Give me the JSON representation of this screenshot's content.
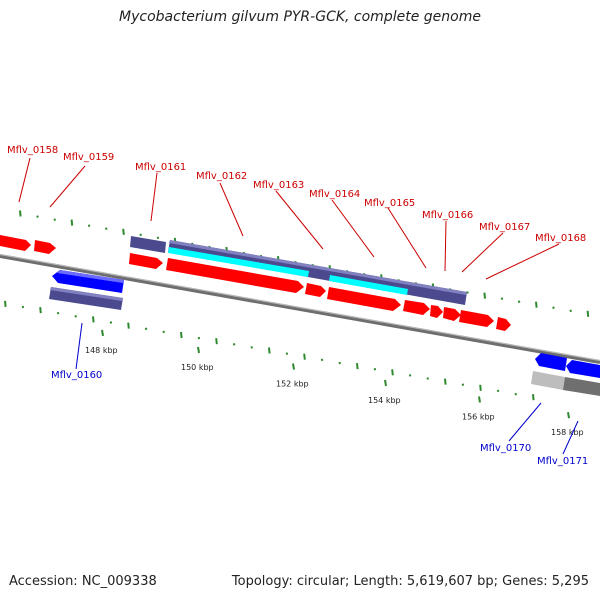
{
  "title": "Mycobacterium gilvum PYR-GCK, complete genome",
  "footer": {
    "accession": "Accession: NC_009338",
    "summary": "Topology: circular; Length: 5,619,607 bp; Genes: 5,295"
  },
  "colors": {
    "forward_gene": "#ff0000",
    "reverse_gene": "#0000ff",
    "cds_bar": "#4b4a8e",
    "highlight": "#00ffff",
    "backbone": "#7a7a7a",
    "gc_tick": "#2f8a2f",
    "forward_label": "#cc0000",
    "reverse_label": "#0000cc"
  },
  "ruler_labels": [
    "148 kbp",
    "150 kbp",
    "152 kbp",
    "154 kbp",
    "156 kbp",
    "158 kbp"
  ],
  "forward_genes": [
    "Mflv_0158",
    "Mflv_0159",
    "Mflv_0161",
    "Mflv_0162",
    "Mflv_0163",
    "Mflv_0164",
    "Mflv_0165",
    "Mflv_0166",
    "Mflv_0167",
    "Mflv_0168"
  ],
  "reverse_genes": [
    "Mflv_0160",
    "Mflv_0170",
    "Mflv_0171"
  ]
}
